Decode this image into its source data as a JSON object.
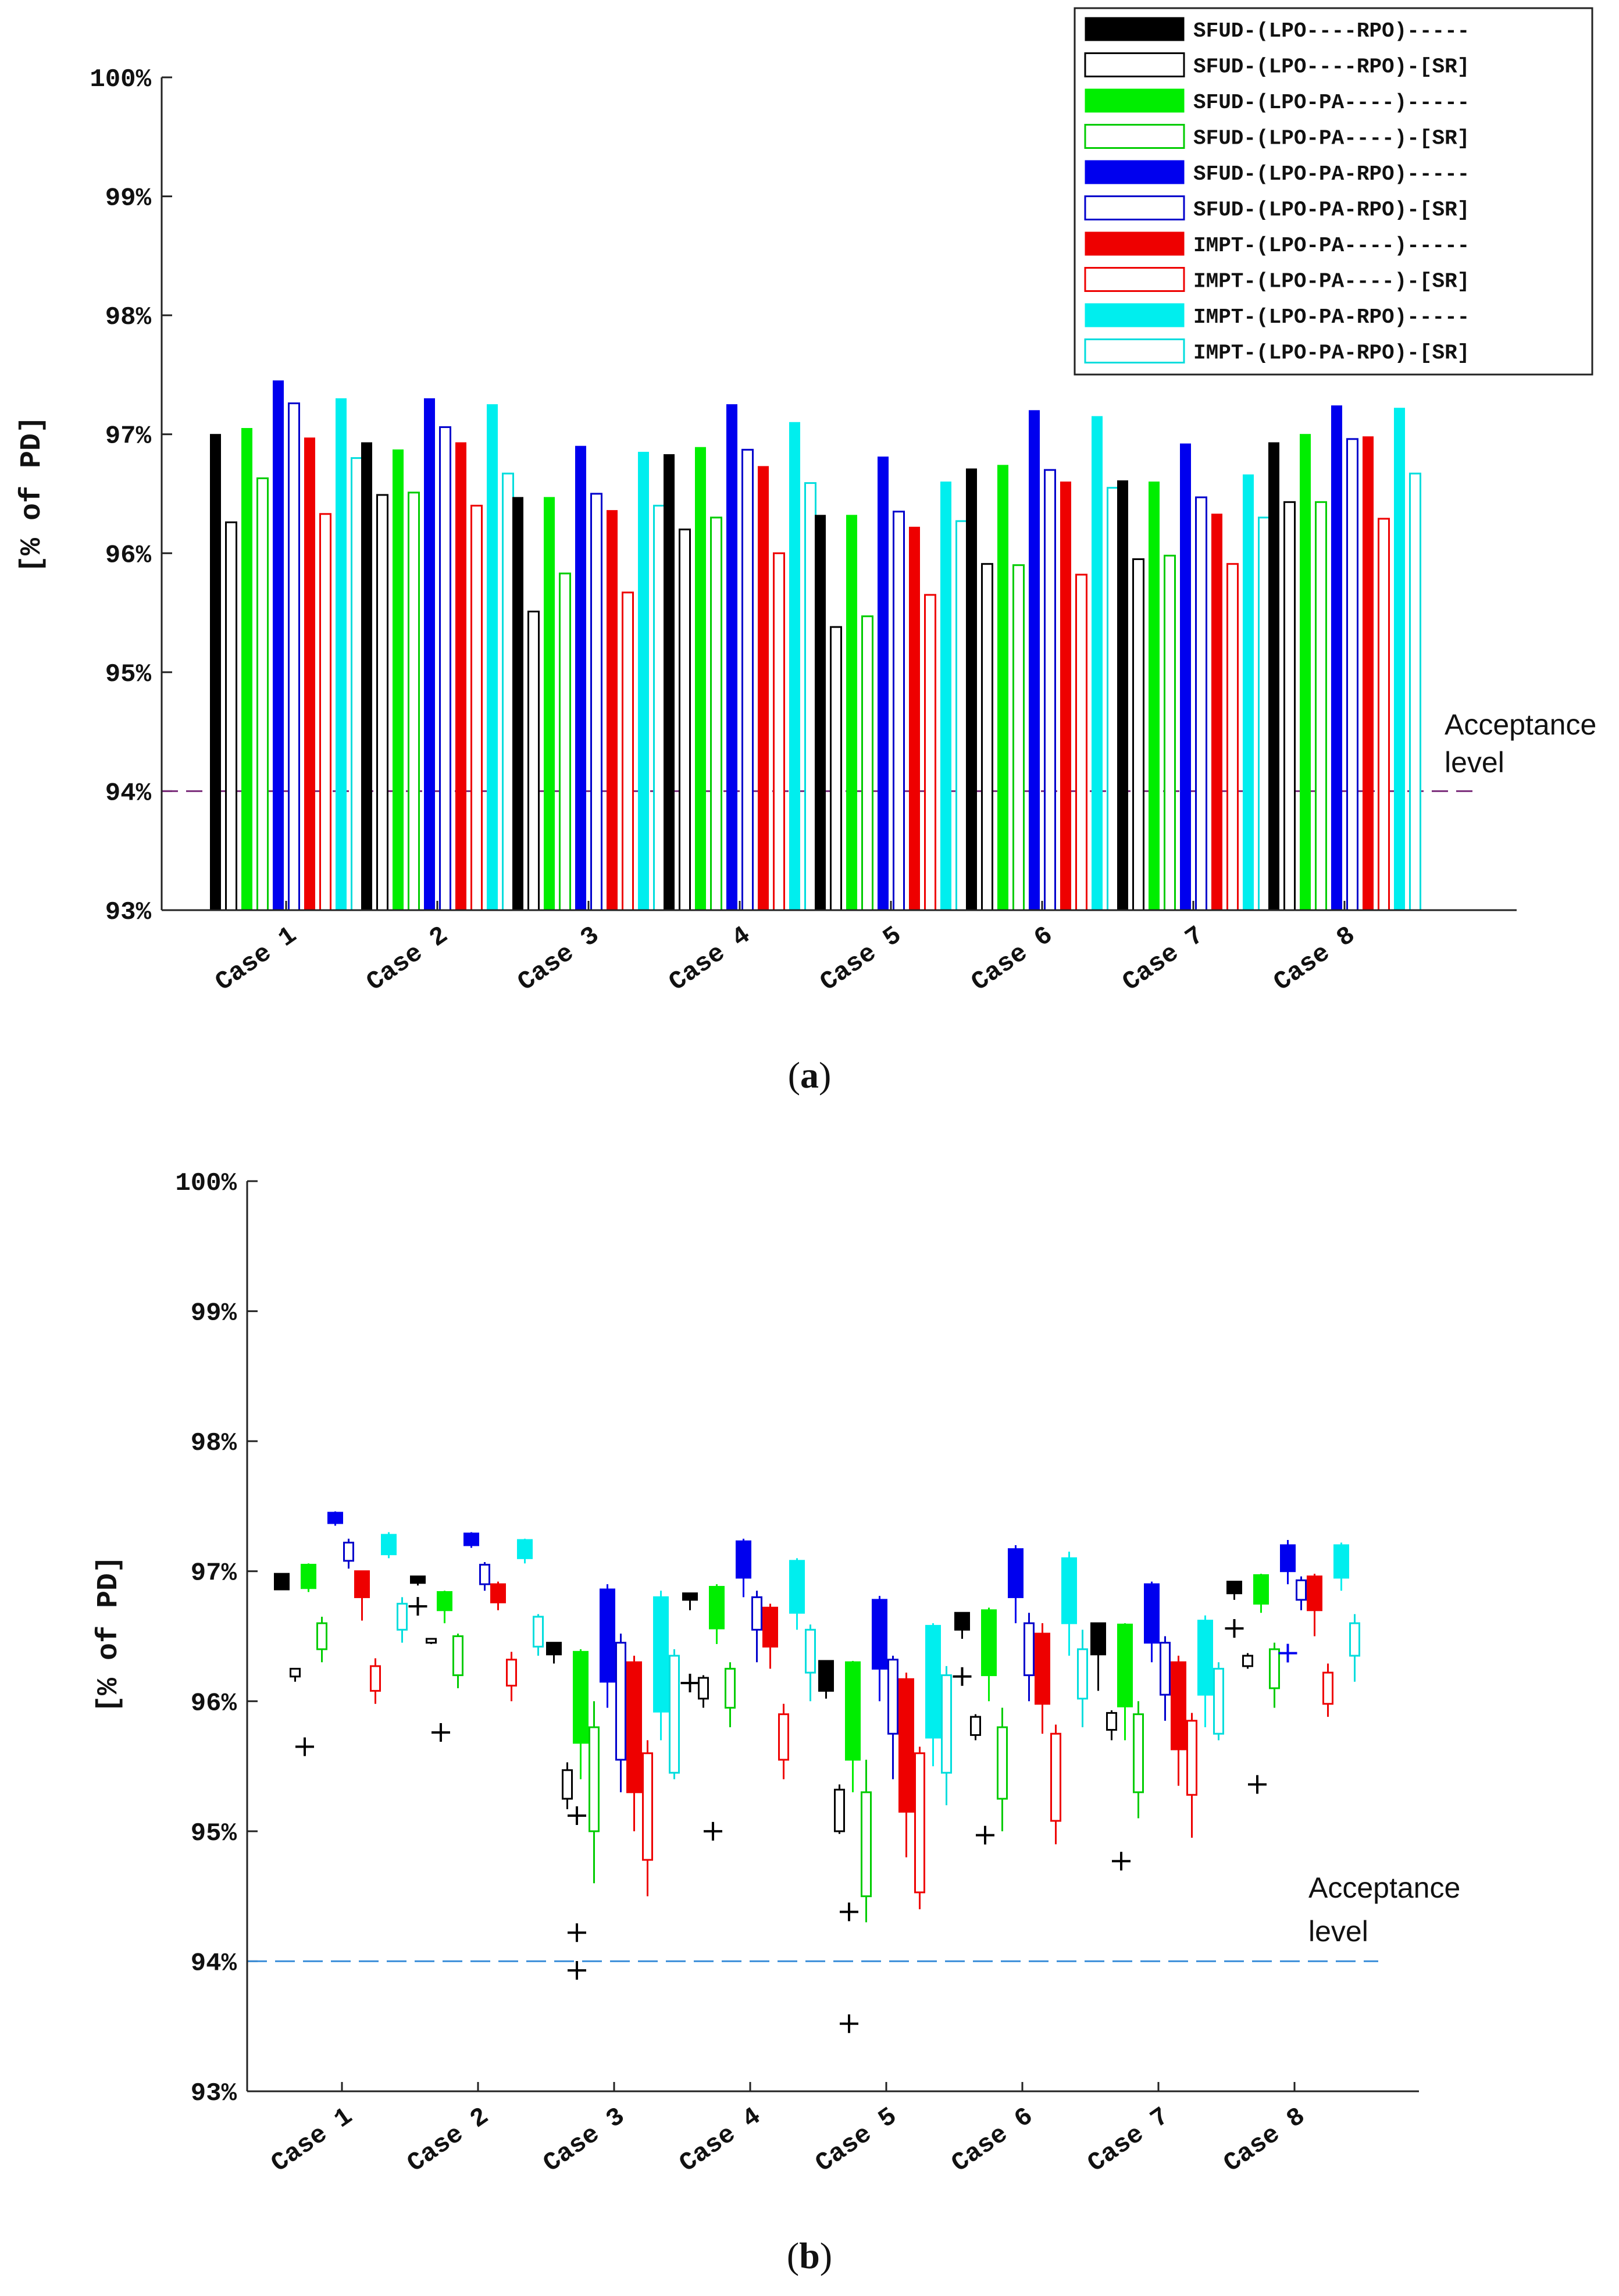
{
  "chart_data": [
    {
      "panel": "(a)",
      "panel_label": {
        "open": "(",
        "letter": "a",
        "close": ")"
      },
      "type": "bar",
      "ylabel": "[% of PD]",
      "ylim": [
        93,
        100
      ],
      "yticks": [
        "93%",
        "94%",
        "95%",
        "96%",
        "97%",
        "98%",
        "99%",
        "100%"
      ],
      "categories": [
        "Case 1",
        "Case 2",
        "Case 3",
        "Case 4",
        "Case 5",
        "Case 6",
        "Case 7",
        "Case 8"
      ],
      "acceptance_level": {
        "value": 94,
        "label_line1": "Acceptance",
        "label_line2": "level",
        "color": "#7b2d7b"
      },
      "series": [
        {
          "name": "SFUD-(LPO----RPO)-----",
          "color": "#000000",
          "filled": true,
          "values": [
            97.0,
            96.93,
            96.47,
            96.83,
            96.32,
            96.71,
            96.61,
            96.93
          ]
        },
        {
          "name": "SFUD-(LPO----RPO)-[SR]",
          "color": "#000000",
          "filled": false,
          "values": [
            96.26,
            96.49,
            95.51,
            96.2,
            95.38,
            95.91,
            95.95,
            96.43
          ]
        },
        {
          "name": "SFUD-(LPO-PA----)-----",
          "color": "#00ee00",
          "filled": true,
          "values": [
            97.05,
            96.87,
            96.47,
            96.89,
            96.32,
            96.74,
            96.6,
            97.0
          ]
        },
        {
          "name": "SFUD-(LPO-PA----)-[SR]",
          "color": "#00cc00",
          "filled": false,
          "values": [
            96.63,
            96.51,
            95.83,
            96.3,
            95.47,
            95.9,
            95.98,
            96.43
          ]
        },
        {
          "name": "SFUD-(LPO-PA-RPO)-----",
          "color": "#0000ee",
          "filled": true,
          "values": [
            97.45,
            97.3,
            96.9,
            97.25,
            96.81,
            97.2,
            96.92,
            97.24
          ]
        },
        {
          "name": "SFUD-(LPO-PA-RPO)-[SR]",
          "color": "#0000cc",
          "filled": false,
          "values": [
            97.26,
            97.06,
            96.5,
            96.87,
            96.35,
            96.7,
            96.47,
            96.96
          ]
        },
        {
          "name": "IMPT-(LPO-PA----)-----",
          "color": "#ee0000",
          "filled": true,
          "values": [
            96.97,
            96.93,
            96.36,
            96.73,
            96.22,
            96.6,
            96.33,
            96.98
          ]
        },
        {
          "name": "IMPT-(LPO-PA----)-[SR]",
          "color": "#ee0000",
          "filled": false,
          "values": [
            96.33,
            96.4,
            95.67,
            96.0,
            95.65,
            95.82,
            95.91,
            96.29
          ]
        },
        {
          "name": "IMPT-(LPO-PA-RPO)-----",
          "color": "#00eeee",
          "filled": true,
          "values": [
            97.3,
            97.25,
            96.85,
            97.1,
            96.6,
            97.15,
            96.66,
            97.22
          ]
        },
        {
          "name": "IMPT-(LPO-PA-RPO)-[SR]",
          "color": "#00dddd",
          "filled": false,
          "values": [
            96.8,
            96.67,
            96.4,
            96.59,
            96.27,
            96.55,
            96.3,
            96.67
          ]
        }
      ]
    },
    {
      "panel": "(b)",
      "panel_label": {
        "open": "(",
        "letter": "b",
        "close": ")"
      },
      "type": "box",
      "ylabel": "[% of PD]",
      "ylim": [
        93,
        100
      ],
      "yticks": [
        "93%",
        "94%",
        "95%",
        "96%",
        "97%",
        "98%",
        "99%",
        "100%"
      ],
      "categories": [
        "Case 1",
        "Case 2",
        "Case 3",
        "Case 4",
        "Case 5",
        "Case 6",
        "Case 7",
        "Case 8"
      ],
      "acceptance_level": {
        "value": 94,
        "label_line1": "Acceptance",
        "label_line2": "level",
        "color": "#3d8fd9"
      },
      "series": [
        {
          "name": "SFUD-(LPO----RPO)-----",
          "color": "#000000",
          "filled": true,
          "boxes": [
            [
              96.86,
              96.88,
              96.98,
              96.97
            ],
            [
              96.91,
              96.89,
              96.96,
              96.96
            ],
            [
              96.36,
              96.29,
              96.45,
              96.44
            ],
            [
              96.78,
              96.7,
              96.83,
              96.82
            ],
            [
              96.08,
              96.02,
              96.31,
              96.3
            ],
            [
              96.55,
              96.48,
              96.68,
              96.67
            ],
            [
              96.36,
              96.08,
              96.6,
              96.6
            ],
            [
              96.83,
              96.78,
              96.92,
              96.92
            ]
          ],
          "outliers": [
            [],
            [
              96.73
            ],
            [],
            [
              96.14
            ],
            [],
            [
              96.19
            ],
            [],
            [
              96.56
            ]
          ]
        },
        {
          "name": "SFUD-(LPO----RPO)-[SR]",
          "color": "#000000",
          "filled": false,
          "boxes": [
            [
              96.19,
              96.15,
              96.25,
              96.25
            ],
            [
              96.45,
              96.44,
              96.48,
              96.48
            ],
            [
              95.25,
              95.17,
              95.47,
              95.53
            ],
            [
              96.02,
              95.95,
              96.18,
              96.2
            ],
            [
              95.0,
              94.98,
              95.32,
              95.36
            ],
            [
              95.74,
              95.7,
              95.88,
              95.9
            ],
            [
              95.78,
              95.7,
              95.91,
              95.93
            ],
            [
              96.27,
              96.25,
              96.35,
              96.37
            ]
          ],
          "outliers": [
            [
              95.65
            ],
            [
              95.76
            ],
            [
              95.12,
              93.93
            ],
            [
              95.0
            ],
            [
              94.38,
              93.52
            ],
            [
              94.97
            ],
            [
              94.77
            ],
            [
              95.36
            ]
          ]
        },
        {
          "name": "SFUD-(LPO-PA----)-----",
          "color": "#00ee00",
          "filled": true,
          "boxes": [
            [
              96.87,
              96.84,
              97.05,
              97.06
            ],
            [
              96.7,
              96.6,
              96.84,
              96.85
            ],
            [
              95.68,
              95.4,
              96.38,
              96.4
            ],
            [
              96.56,
              96.44,
              96.88,
              96.9
            ],
            [
              95.55,
              95.3,
              96.3,
              96.31
            ],
            [
              96.2,
              96.0,
              96.7,
              96.72
            ],
            [
              95.96,
              95.7,
              96.59,
              96.6
            ],
            [
              96.75,
              96.68,
              96.97,
              96.98
            ]
          ],
          "outliers": [
            [],
            [],
            [],
            [],
            [],
            [],
            [],
            []
          ]
        },
        {
          "name": "SFUD-(LPO-PA----)-[SR]",
          "color": "#00cc00",
          "filled": false,
          "boxes": [
            [
              96.4,
              96.3,
              96.6,
              96.65
            ],
            [
              96.2,
              96.1,
              96.5,
              96.52
            ],
            [
              95.0,
              94.6,
              95.8,
              96.0
            ],
            [
              95.95,
              95.8,
              96.25,
              96.3
            ],
            [
              94.5,
              94.3,
              95.3,
              95.55
            ],
            [
              95.25,
              95.0,
              95.8,
              95.95
            ],
            [
              95.3,
              95.1,
              95.9,
              96.0
            ],
            [
              96.1,
              95.95,
              96.4,
              96.45
            ]
          ],
          "outliers": [
            [],
            [],
            [],
            [],
            [],
            [],
            [],
            []
          ]
        },
        {
          "name": "SFUD-(LPO-PA-RPO)-----",
          "color": "#0000ee",
          "filled": true,
          "boxes": [
            [
              97.37,
              97.35,
              97.45,
              97.46
            ],
            [
              97.2,
              97.18,
              97.29,
              97.3
            ],
            [
              96.15,
              95.95,
              96.86,
              96.9
            ],
            [
              96.95,
              96.8,
              97.23,
              97.25
            ],
            [
              96.25,
              96.0,
              96.78,
              96.81
            ],
            [
              96.8,
              96.6,
              97.17,
              97.2
            ],
            [
              96.45,
              96.3,
              96.9,
              96.92
            ],
            [
              97.0,
              96.9,
              97.2,
              97.24
            ]
          ],
          "outliers": [
            [],
            [],
            [],
            [],
            [],
            [],
            [],
            [
              96.37
            ]
          ]
        },
        {
          "name": "SFUD-(LPO-PA-RPO)-[SR]",
          "color": "#0000cc",
          "filled": false,
          "boxes": [
            [
              97.08,
              97.02,
              97.22,
              97.25
            ],
            [
              96.9,
              96.85,
              97.05,
              97.07
            ],
            [
              95.55,
              95.3,
              96.45,
              96.52
            ],
            [
              96.55,
              96.3,
              96.8,
              96.85
            ],
            [
              95.75,
              95.4,
              96.32,
              96.35
            ],
            [
              96.2,
              96.0,
              96.6,
              96.68
            ],
            [
              96.05,
              95.85,
              96.45,
              96.5
            ],
            [
              96.78,
              96.7,
              96.93,
              96.96
            ]
          ],
          "outliers": [
            [],
            [],
            [],
            [],
            [],
            [],
            [],
            []
          ]
        },
        {
          "name": "IMPT-(LPO-PA----)-----",
          "color": "#ee0000",
          "filled": true,
          "boxes": [
            [
              96.8,
              96.62,
              97.0,
              97.0
            ],
            [
              96.76,
              96.7,
              96.9,
              96.92
            ],
            [
              95.3,
              95.0,
              96.3,
              96.35
            ],
            [
              96.42,
              96.25,
              96.72,
              96.75
            ],
            [
              95.15,
              94.8,
              96.17,
              96.22
            ],
            [
              95.98,
              95.75,
              96.52,
              96.6
            ],
            [
              95.63,
              95.35,
              96.3,
              96.35
            ],
            [
              96.7,
              96.5,
              96.96,
              96.98
            ]
          ],
          "outliers": [
            [],
            [],
            [],
            [],
            [],
            [],
            [],
            []
          ]
        },
        {
          "name": "IMPT-(LPO-PA----)-[SR]",
          "color": "#ee0000",
          "filled": false,
          "boxes": [
            [
              96.08,
              95.98,
              96.27,
              96.33
            ],
            [
              96.12,
              96.0,
              96.32,
              96.38
            ],
            [
              94.78,
              94.5,
              95.6,
              95.7
            ],
            [
              95.55,
              95.4,
              95.9,
              95.98
            ],
            [
              94.53,
              94.4,
              95.6,
              95.65
            ],
            [
              95.08,
              94.9,
              95.75,
              95.82
            ],
            [
              95.28,
              94.95,
              95.85,
              95.91
            ],
            [
              95.98,
              95.88,
              96.22,
              96.29
            ]
          ],
          "outliers": [
            [],
            [],
            [
              94.22
            ],
            [],
            [],
            [],
            [],
            []
          ]
        },
        {
          "name": "IMPT-(LPO-PA-RPO)-----",
          "color": "#00eeee",
          "filled": true,
          "boxes": [
            [
              97.13,
              97.1,
              97.28,
              97.3
            ],
            [
              97.1,
              97.06,
              97.24,
              97.25
            ],
            [
              95.92,
              95.7,
              96.8,
              96.85
            ],
            [
              96.68,
              96.55,
              97.08,
              97.1
            ],
            [
              95.72,
              95.5,
              96.58,
              96.6
            ],
            [
              96.6,
              96.35,
              97.1,
              97.15
            ],
            [
              96.05,
              95.8,
              96.62,
              96.66
            ],
            [
              96.95,
              96.85,
              97.2,
              97.22
            ]
          ],
          "outliers": [
            [],
            [],
            [],
            [],
            [],
            [],
            [],
            []
          ]
        },
        {
          "name": "IMPT-(LPO-PA-RPO)-[SR]",
          "color": "#00dddd",
          "filled": false,
          "boxes": [
            [
              96.55,
              96.45,
              96.75,
              96.8
            ],
            [
              96.42,
              96.35,
              96.65,
              96.67
            ],
            [
              95.45,
              95.4,
              96.35,
              96.4
            ],
            [
              96.22,
              96.0,
              96.55,
              96.59
            ],
            [
              95.45,
              95.2,
              96.2,
              96.27
            ],
            [
              96.02,
              95.8,
              96.4,
              96.55
            ],
            [
              95.75,
              95.7,
              96.25,
              96.3
            ],
            [
              96.35,
              96.15,
              96.6,
              96.67
            ]
          ],
          "outliers": [
            [],
            [],
            [],
            [],
            [],
            [],
            [],
            []
          ]
        }
      ]
    }
  ]
}
